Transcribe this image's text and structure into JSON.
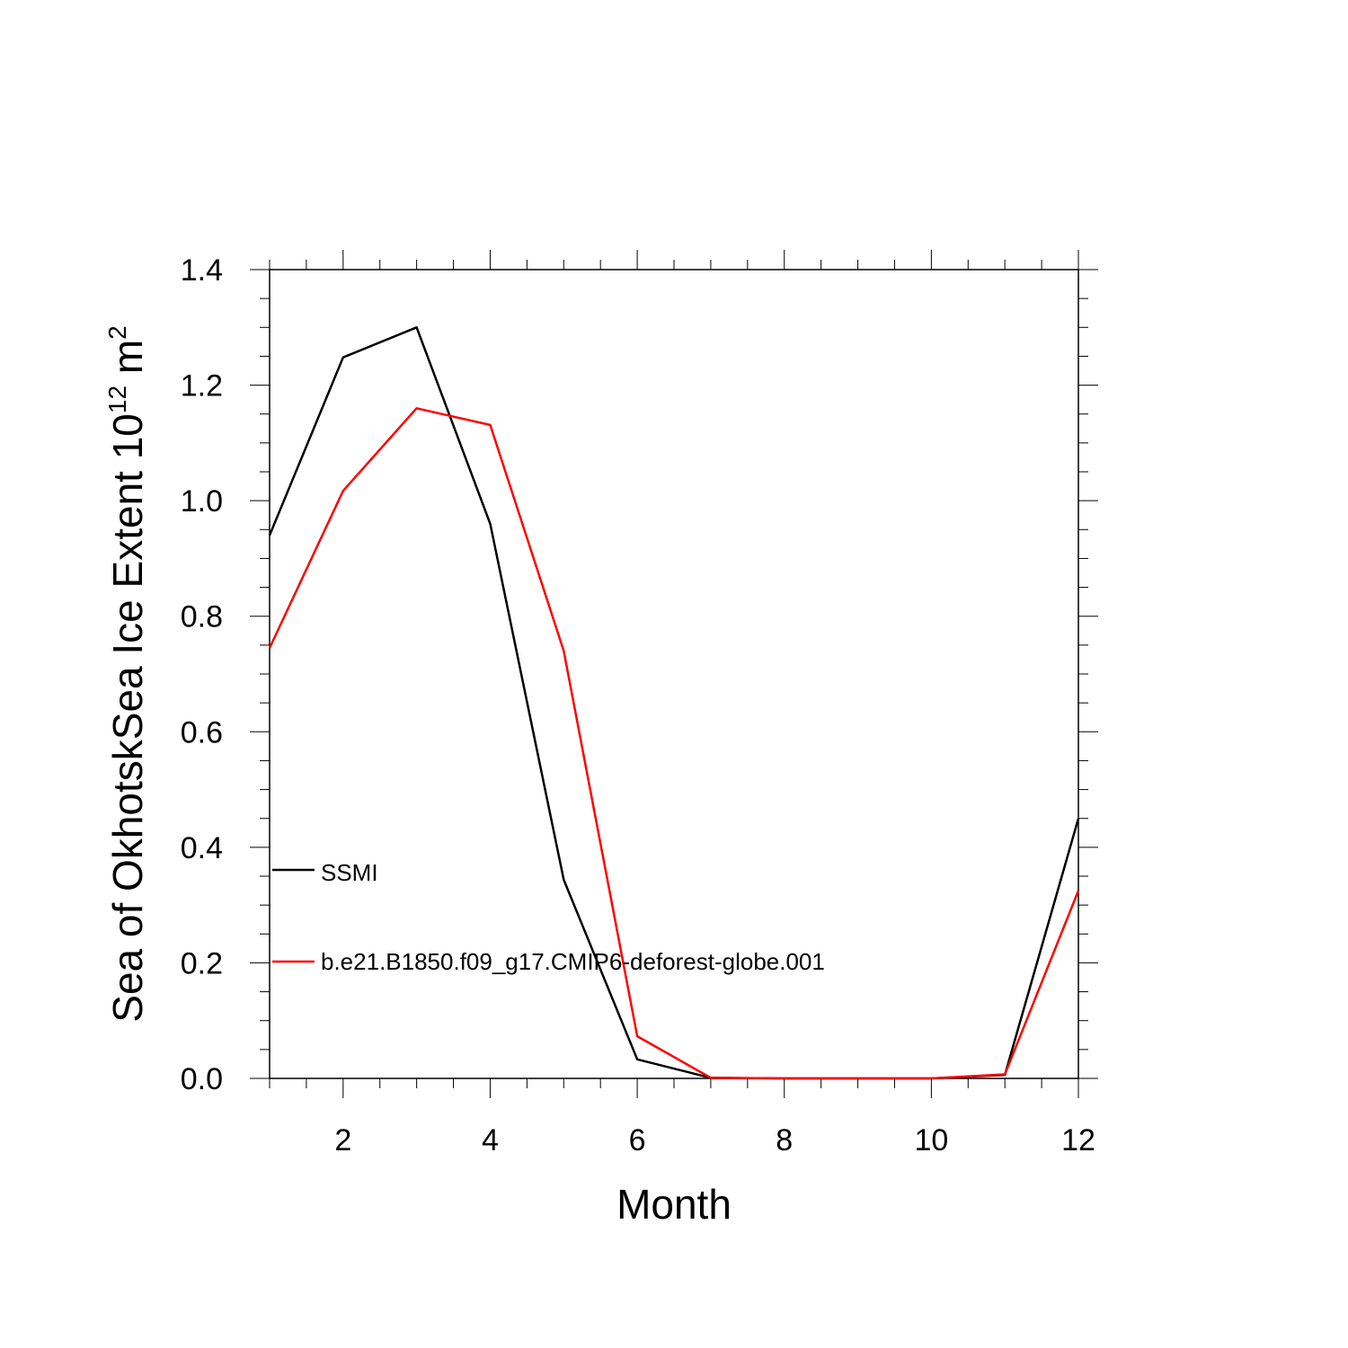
{
  "chart_data": {
    "type": "line",
    "xlabel": "Month",
    "ylabel": {
      "main": "Sea of OkhotskSea Ice Extent 10",
      "sup": "12",
      "unit": " m",
      "unit_sup": "2"
    },
    "xlim": [
      1,
      12
    ],
    "ylim": [
      0,
      1.4
    ],
    "x_major_ticks": [
      2,
      4,
      6,
      8,
      10,
      12
    ],
    "y_major_ticks": [
      0.0,
      0.2,
      0.4,
      0.6,
      0.8,
      1.0,
      1.2,
      1.4
    ],
    "y_tick_labels": [
      "0.0",
      "0.2",
      "0.4",
      "0.6",
      "0.8",
      "1.0",
      "1.2",
      "1.4"
    ],
    "x": [
      1,
      2,
      3,
      4,
      5,
      6,
      7,
      8,
      9,
      10,
      11,
      12
    ],
    "grid": false,
    "legend_position": "inside-left",
    "series": [
      {
        "name": "SSMI",
        "color": "#000000",
        "values": [
          0.94,
          1.248,
          1.3,
          0.96,
          0.344,
          0.033,
          0.001,
          0.0,
          0.0,
          0.0,
          0.006,
          0.45
        ]
      },
      {
        "name": "b.e21.B1850.f09_g17.CMIP6-deforest-globe.001",
        "color": "#ff0000",
        "values": [
          0.745,
          1.017,
          1.16,
          1.131,
          0.74,
          0.073,
          0.001,
          0.0,
          0.0,
          0.0,
          0.007,
          0.325
        ]
      }
    ]
  }
}
